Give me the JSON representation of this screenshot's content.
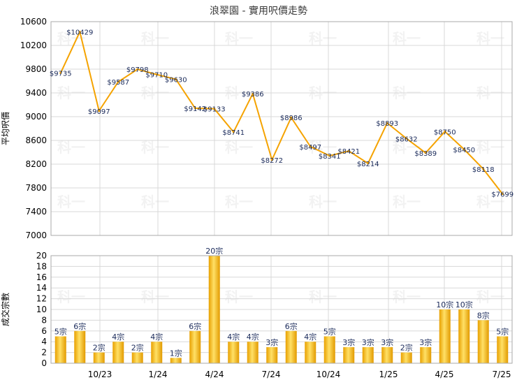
{
  "chart_data": [
    {
      "type": "line",
      "title": "浪翠園 - 實用呎價走勢",
      "ylabel": "平均呎價",
      "ylim": [
        7000,
        10600
      ],
      "yticks": [
        7000,
        7400,
        7800,
        8200,
        8600,
        9000,
        9400,
        9800,
        10200,
        10600
      ],
      "grid": true,
      "color": "#f5a300",
      "value_prefix": "$",
      "series": [
        {
          "values": [
            9735,
            10429,
            9097,
            9587,
            9798,
            9710,
            9630,
            9142,
            9133,
            8741,
            9386,
            8272,
            8986,
            8497,
            8341,
            8421,
            8214,
            8893,
            8632,
            8389,
            8750,
            8450,
            8118,
            7699
          ]
        }
      ]
    },
    {
      "type": "bar",
      "ylabel": "成交宗數",
      "ylim": [
        0,
        20
      ],
      "yticks": [
        0,
        2,
        4,
        6,
        8,
        10,
        12,
        14,
        16,
        18,
        20
      ],
      "xtick_labels": [
        "10/23",
        "1/24",
        "4/24",
        "7/24",
        "10/24",
        "1/25",
        "4/25",
        "7/25"
      ],
      "grid": true,
      "value_suffix": "宗",
      "values": [
        5,
        6,
        2,
        4,
        2,
        4,
        1,
        6,
        20,
        4,
        4,
        3,
        6,
        4,
        5,
        3,
        3,
        3,
        2,
        3,
        10,
        10,
        8,
        5
      ]
    }
  ],
  "watermark": "科一"
}
